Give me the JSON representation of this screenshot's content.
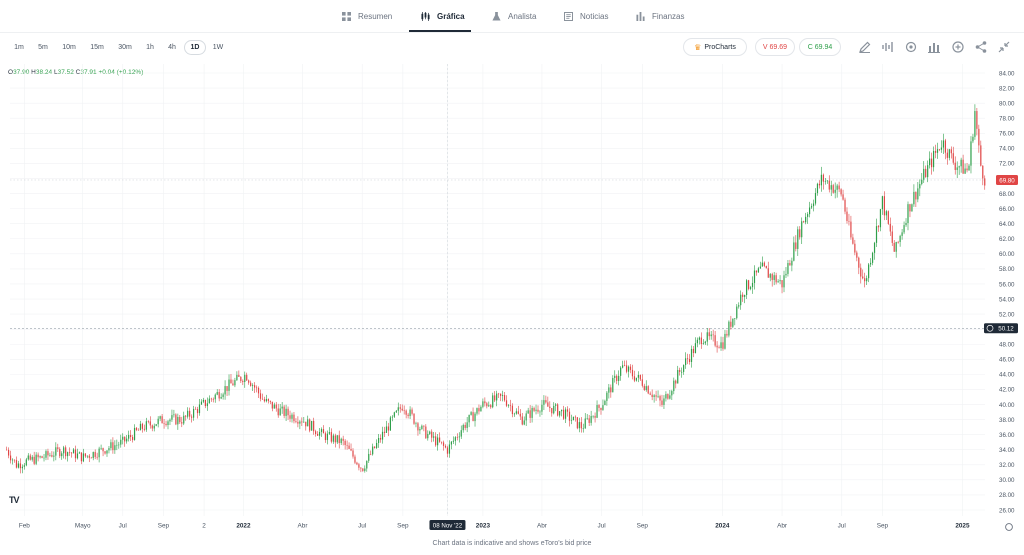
{
  "nav": {
    "tabs": [
      {
        "label": "Resumen",
        "icon": "grid-icon",
        "active": false
      },
      {
        "label": "Gráfica",
        "icon": "candles-icon",
        "active": true
      },
      {
        "label": "Analista",
        "icon": "flask-icon",
        "active": false
      },
      {
        "label": "Noticias",
        "icon": "news-icon",
        "active": false
      },
      {
        "label": "Finanzas",
        "icon": "bars-icon",
        "active": false
      }
    ]
  },
  "toolbar": {
    "timeframes": [
      "1m",
      "5m",
      "10m",
      "15m",
      "30m",
      "1h",
      "4h",
      "1D",
      "1W"
    ],
    "active_timeframe": "1D",
    "procharts_label": "ProCharts",
    "sell_label": "V 69.69",
    "buy_label": "C 69.94",
    "tools": [
      "pencil-icon",
      "indicator-wave-icon",
      "settings-icon",
      "chart-type-icon",
      "add-icon",
      "share-icon",
      "collapse-icon"
    ]
  },
  "ohlc": {
    "o_label": "O",
    "o_value": "37.90",
    "h_label": "H",
    "h_value": "38.24",
    "l_label": "L",
    "l_value": "37.52",
    "c_label": "C",
    "c_value": "37.91",
    "change": "+0.04 (+0.12%)"
  },
  "footnote": "Chart data is indicative and shows eToro's bid price",
  "colors": {
    "up": "#2e9f4a",
    "down": "#e04545",
    "grid": "#f0f2f4",
    "axis_text": "#4a5563",
    "price_tag_red": "#e04545",
    "price_tag_dark": "#1f2a37"
  },
  "chart_data": {
    "type": "candlestick",
    "y_axis": {
      "ticks": [
        26,
        28,
        30,
        32,
        34,
        36,
        38,
        40,
        42,
        44,
        46,
        48,
        50,
        52,
        54,
        56,
        58,
        60,
        62,
        64,
        66,
        68,
        70,
        72,
        74,
        76,
        78,
        80,
        82,
        84
      ],
      "tick_labels": [
        "26.00",
        "28.00",
        "30.00",
        "32.00",
        "34.00",
        "36.00",
        "38.00",
        "40.00",
        "42.00",
        "44.00",
        "46.00",
        "48.00",
        "50.00",
        "52.00",
        "54.00",
        "56.00",
        "58.00",
        "60.00",
        "62.00",
        "64.00",
        "66.00",
        "68.00",
        "70.00",
        "72.00",
        "74.00",
        "76.00",
        "78.00",
        "80.00",
        "82.00",
        "84.00"
      ],
      "ylim": [
        25,
        85
      ]
    },
    "x_axis": {
      "tick_labels": [
        "Feb",
        "Mayo",
        "Jul",
        "Sep",
        "2",
        "2022",
        "Abr",
        "Jul",
        "Sep",
        "08 Nov '22",
        "2023",
        "Abr",
        "Jul",
        "Sep",
        "2024",
        "Abr",
        "Jul",
        "Sep",
        "2025"
      ],
      "tick_dates": [
        "2021-02-01",
        "2021-05-01",
        "2021-07-01",
        "2021-09-01",
        "2021-11-02",
        "2022-01-01",
        "2022-04-01",
        "2022-07-01",
        "2022-09-01",
        "2022-11-08",
        "2023-01-01",
        "2023-04-01",
        "2023-07-01",
        "2023-09-01",
        "2024-01-01",
        "2024-04-01",
        "2024-07-01",
        "2024-09-01",
        "2025-01-01"
      ],
      "highlighted_label": "08 Nov '22"
    },
    "current_price_label": "69.80",
    "current_price": 69.8,
    "crosshair_price_label": "50.12",
    "crosshair_price": 50.12,
    "series": [
      {
        "date": "2021-01-05",
        "close": 34.0
      },
      {
        "date": "2021-01-20",
        "close": 32.0
      },
      {
        "date": "2021-02-05",
        "close": 32.5
      },
      {
        "date": "2021-03-01",
        "close": 33.0
      },
      {
        "date": "2021-04-01",
        "close": 34.0
      },
      {
        "date": "2021-05-01",
        "close": 33.0
      },
      {
        "date": "2021-06-01",
        "close": 34.0
      },
      {
        "date": "2021-07-01",
        "close": 35.0
      },
      {
        "date": "2021-08-01",
        "close": 37.0
      },
      {
        "date": "2021-09-01",
        "close": 38.0
      },
      {
        "date": "2021-10-01",
        "close": 38.0
      },
      {
        "date": "2021-11-01",
        "close": 40.0
      },
      {
        "date": "2021-12-01",
        "close": 42.0
      },
      {
        "date": "2022-01-05",
        "close": 44.0
      },
      {
        "date": "2022-02-01",
        "close": 40.5
      },
      {
        "date": "2022-03-01",
        "close": 39.0
      },
      {
        "date": "2022-04-01",
        "close": 38.0
      },
      {
        "date": "2022-05-01",
        "close": 36.0
      },
      {
        "date": "2022-06-01",
        "close": 35.0
      },
      {
        "date": "2022-07-01",
        "close": 31.5
      },
      {
        "date": "2022-08-01",
        "close": 36.0
      },
      {
        "date": "2022-09-01",
        "close": 40.0
      },
      {
        "date": "2022-10-01",
        "close": 36.5
      },
      {
        "date": "2022-11-08",
        "close": 34.0
      },
      {
        "date": "2022-12-01",
        "close": 37.0
      },
      {
        "date": "2023-01-01",
        "close": 40.0
      },
      {
        "date": "2023-02-01",
        "close": 41.0
      },
      {
        "date": "2023-03-01",
        "close": 38.0
      },
      {
        "date": "2023-04-01",
        "close": 40.0
      },
      {
        "date": "2023-05-01",
        "close": 39.0
      },
      {
        "date": "2023-06-01",
        "close": 37.0
      },
      {
        "date": "2023-07-01",
        "close": 40.0
      },
      {
        "date": "2023-08-01",
        "close": 45.0
      },
      {
        "date": "2023-09-01",
        "close": 43.0
      },
      {
        "date": "2023-10-01",
        "close": 40.0
      },
      {
        "date": "2023-11-01",
        "close": 45.0
      },
      {
        "date": "2023-12-01",
        "close": 49.0
      },
      {
        "date": "2024-01-01",
        "close": 48.0
      },
      {
        "date": "2024-02-01",
        "close": 55.0
      },
      {
        "date": "2024-03-01",
        "close": 58.0
      },
      {
        "date": "2024-04-01",
        "close": 56.0
      },
      {
        "date": "2024-05-01",
        "close": 64.0
      },
      {
        "date": "2024-06-01",
        "close": 70.0
      },
      {
        "date": "2024-07-01",
        "close": 68.0
      },
      {
        "date": "2024-07-15",
        "close": 62.0
      },
      {
        "date": "2024-08-05",
        "close": 56.0
      },
      {
        "date": "2024-08-20",
        "close": 62.0
      },
      {
        "date": "2024-09-01",
        "close": 67.0
      },
      {
        "date": "2024-09-20",
        "close": 60.0
      },
      {
        "date": "2024-10-10",
        "close": 66.0
      },
      {
        "date": "2024-11-01",
        "close": 70.0
      },
      {
        "date": "2024-12-01",
        "close": 75.0
      },
      {
        "date": "2024-12-20",
        "close": 72.0
      },
      {
        "date": "2025-01-10",
        "close": 71.0
      },
      {
        "date": "2025-01-20",
        "close": 79.0
      },
      {
        "date": "2025-01-28",
        "close": 72.0
      },
      {
        "date": "2025-02-05",
        "close": 69.8
      }
    ]
  }
}
